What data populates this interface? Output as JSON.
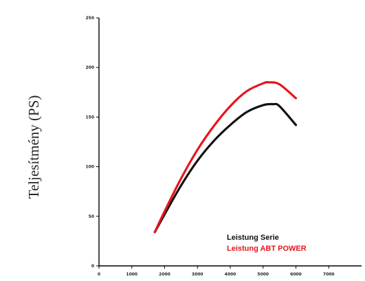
{
  "chart_data": {
    "type": "line",
    "title": "",
    "xlabel": "",
    "ylabel": "Teljesítmény (PS)",
    "xlim": [
      0,
      8000
    ],
    "ylim": [
      0,
      250
    ],
    "x_ticks": [
      0,
      1000,
      2000,
      3000,
      4000,
      5000,
      6000,
      7000
    ],
    "y_ticks": [
      0,
      50,
      100,
      150,
      200,
      250
    ],
    "x_tick_labels": [
      "0",
      "1000",
      "2000",
      "3000",
      "4000",
      "5000",
      "6000",
      "7000"
    ],
    "y_tick_labels": [
      "0",
      "50",
      "100",
      "150",
      "200",
      "250"
    ],
    "grid": false,
    "legend_position": "bottom-right",
    "series": [
      {
        "name": "Leistung Serie",
        "color": "#111111",
        "x": [
          1700,
          2000,
          2500,
          3000,
          3500,
          4000,
          4500,
          5000,
          5300,
          5500,
          6000
        ],
        "y": [
          34,
          52,
          81,
          106,
          126,
          142,
          155,
          162,
          163,
          161,
          142
        ]
      },
      {
        "name": "Leistung ABT POWER",
        "color": "#e8141c",
        "x": [
          1700,
          2000,
          2500,
          3000,
          3500,
          4000,
          4500,
          5000,
          5200,
          5500,
          6000
        ],
        "y": [
          34,
          55,
          88,
          117,
          141,
          161,
          176,
          184,
          185,
          183,
          169
        ]
      }
    ]
  }
}
